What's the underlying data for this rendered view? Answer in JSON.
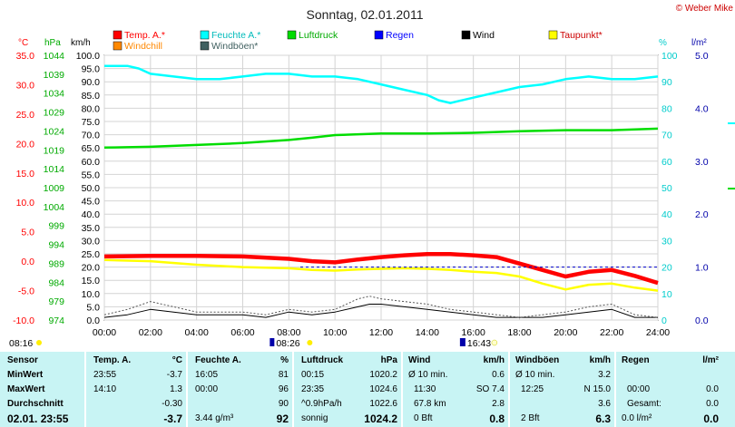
{
  "chart_data": {
    "type": "line",
    "title": "Sonntag, 02.01.2011",
    "credit": "© Weber Mike",
    "legend": [
      {
        "name": "Temp. A.*",
        "color": "#ff0000"
      },
      {
        "name": "Feuchte A.*",
        "color": "#00ffff"
      },
      {
        "name": "Luftdruck",
        "color": "#00dd00"
      },
      {
        "name": "Regen",
        "color": "#0000ff"
      },
      {
        "name": "Wind",
        "color": "#000000"
      },
      {
        "name": "Taupunkt*",
        "color": "#ffff00"
      },
      {
        "name": "Windchill",
        "color": "#ff8800"
      },
      {
        "name": "Windböen*",
        "color": "#406060"
      }
    ],
    "axes": {
      "temp": {
        "unit": "°C",
        "color": "#ff0000",
        "ticks": [
          "35.0",
          "30.0",
          "25.0",
          "20.0",
          "15.0",
          "10.0",
          "5.0",
          "0.0",
          "-5.0",
          "-10.0"
        ]
      },
      "pressure": {
        "unit": "hPa",
        "color": "#00aa00",
        "ticks": [
          "1044",
          "1039",
          "1034",
          "1029",
          "1024",
          "1019",
          "1014",
          "1009",
          "1004",
          "999",
          "994",
          "989",
          "984",
          "979",
          "974"
        ]
      },
      "wind": {
        "unit": "km/h",
        "color": "#000000",
        "ticks": [
          "100.0",
          "95.0",
          "90.0",
          "85.0",
          "80.0",
          "75.0",
          "70.0",
          "65.0",
          "60.0",
          "55.0",
          "50.0",
          "45.0",
          "40.0",
          "35.0",
          "30.0",
          "25.0",
          "20.0",
          "15.0",
          "10.0",
          "5.0",
          "0.0"
        ]
      },
      "humidity": {
        "unit": "%",
        "color": "#00cccc",
        "ticks": [
          "100",
          "90",
          "80",
          "70",
          "60",
          "50",
          "40",
          "30",
          "20",
          "10",
          "0"
        ]
      },
      "rain": {
        "unit": "l/m²",
        "color": "#0000aa",
        "ticks": [
          "5.0",
          "4.0",
          "3.0",
          "2.0",
          "1.0",
          "0.0"
        ]
      },
      "x": {
        "ticks": [
          "00:00",
          "02:00",
          "04:00",
          "06:00",
          "08:00",
          "10:00",
          "12:00",
          "14:00",
          "16:00",
          "18:00",
          "20:00",
          "22:00",
          "24:00"
        ],
        "xlim": [
          0,
          24
        ]
      },
      "ylim_left": [
        0,
        100
      ]
    },
    "series": [
      {
        "name": "Feuchte A.*",
        "axis": "humidity",
        "x": [
          0,
          1,
          1.5,
          2,
          3,
          4,
          5,
          6,
          7,
          8,
          9,
          10,
          11,
          12,
          13,
          14,
          14.5,
          15,
          16,
          17,
          18,
          19,
          20,
          21,
          22,
          23,
          24
        ],
        "values": [
          96,
          96,
          95,
          93,
          92,
          91,
          91,
          92,
          93,
          93,
          92,
          92,
          91,
          89,
          87,
          85,
          83,
          82,
          84,
          86,
          88,
          89,
          91,
          92,
          91,
          91,
          92
        ]
      },
      {
        "name": "Luftdruck",
        "axis": "pressure",
        "x": [
          0,
          2,
          4,
          6,
          8,
          9,
          10,
          12,
          14,
          16,
          18,
          20,
          22,
          24
        ],
        "values": [
          1019.6,
          1019.8,
          1020.3,
          1020.8,
          1021.6,
          1022.2,
          1022.9,
          1023.3,
          1023.3,
          1023.5,
          1023.9,
          1024.2,
          1024.2,
          1024.6
        ]
      },
      {
        "name": "Temp. A.*",
        "axis": "temp",
        "x": [
          0,
          2,
          4,
          6,
          8,
          9,
          10,
          11,
          12,
          13,
          14,
          15,
          16,
          17,
          18,
          19,
          20,
          21,
          22,
          23,
          24
        ],
        "values": [
          0.8,
          0.9,
          0.9,
          0.8,
          0.4,
          0.0,
          -0.2,
          0.3,
          0.7,
          1.0,
          1.2,
          1.2,
          1.0,
          0.7,
          -0.4,
          -1.5,
          -2.6,
          -1.8,
          -1.5,
          -2.5,
          -3.7
        ]
      },
      {
        "name": "Taupunkt*",
        "axis": "temp",
        "x": [
          0,
          2,
          4,
          6,
          8,
          9,
          10,
          11,
          12,
          13,
          14,
          15,
          16,
          17,
          18,
          19,
          20,
          21,
          22,
          23,
          24
        ],
        "values": [
          0.2,
          0.0,
          -0.6,
          -1.0,
          -1.2,
          -1.5,
          -1.6,
          -1.4,
          -1.3,
          -1.2,
          -1.3,
          -1.5,
          -1.8,
          -2.0,
          -2.6,
          -3.8,
          -4.8,
          -4.0,
          -3.8,
          -4.5,
          -5.0
        ]
      },
      {
        "name": "Wind",
        "axis": "wind",
        "x": [
          0,
          1,
          2,
          3,
          4,
          5,
          6,
          7,
          8,
          9,
          10,
          11,
          11.5,
          12,
          13,
          14,
          15,
          16,
          17,
          18,
          19,
          20,
          21,
          22,
          23,
          24
        ],
        "values": [
          1,
          2,
          4,
          3,
          2,
          2,
          2,
          1,
          3,
          2,
          3,
          5,
          6,
          6,
          5,
          4,
          3,
          2,
          1,
          1,
          1,
          2,
          3,
          4,
          1,
          1
        ]
      },
      {
        "name": "Windböen*",
        "axis": "wind",
        "x": [
          0,
          1,
          2,
          3,
          4,
          5,
          6,
          7,
          8,
          9,
          10,
          11,
          11.5,
          12,
          13,
          14,
          15,
          16,
          17,
          18,
          19,
          20,
          21,
          22,
          23,
          24
        ],
        "values": [
          2,
          4,
          7,
          5,
          3,
          3,
          3,
          2,
          4,
          3,
          4,
          8,
          9,
          8,
          7,
          6,
          4,
          3,
          2,
          1,
          2,
          3,
          5,
          6,
          2,
          1
        ]
      },
      {
        "name": "Regen",
        "axis": "rain",
        "x": [
          8.5,
          24
        ],
        "values": [
          1.0,
          1.0
        ]
      }
    ],
    "sun": {
      "sunrise": "08:16",
      "zenith": "08:26",
      "moon": "16:43"
    }
  },
  "stats": {
    "headers": {
      "sensor": "Sensor",
      "temp": "Temp. A.",
      "temp_unit": "°C",
      "hum": "Feuchte A.",
      "hum_unit": "%",
      "press": "Luftdruck",
      "press_unit": "hPa",
      "wind": "Wind",
      "wind_unit": "km/h",
      "gust": "Windböen",
      "gust_unit": "km/h",
      "rain": "Regen",
      "rain_unit": "l/m²"
    },
    "rows": {
      "min": {
        "label": "MinWert",
        "temp_time": "23:55",
        "temp_val": "-3.7",
        "hum_time": "16:05",
        "hum_val": "81",
        "press_time": "00:15",
        "press_val": "1020.2",
        "wind_time": "Ø 10 min.",
        "wind_val": "0.6",
        "gust_time": "Ø 10 min.",
        "gust_val": "3.2"
      },
      "max": {
        "label": "MaxWert",
        "temp_time": "14:10",
        "temp_val": "1.3",
        "hum_time": "00:00",
        "hum_val": "96",
        "press_time": "23:35",
        "press_val": "1024.6",
        "wind_time": "11:30",
        "wind_val": "SO 7.4",
        "gust_time": "12:25",
        "gust_val": "N 15.0",
        "rain_time": "00:00",
        "rain_val": "0.0"
      },
      "avg": {
        "label": "Durchschnitt",
        "temp_val": "-0.30",
        "hum_val": "90",
        "press_time": "^0.9hPa/h",
        "press_val": "1022.6",
        "wind_time": "67.8 km",
        "wind_val": "2.8",
        "gust_val": "3.6",
        "rain_time": "Gesamt:",
        "rain_val": "0.0"
      },
      "cur": {
        "label": "02.01. 23:55",
        "temp_val": "-3.7",
        "hum_time": "3.44 g/m³",
        "hum_val": "92",
        "press_time": "sonnig",
        "press_val": "1024.2",
        "wind_time": "0 Bft",
        "wind_val": "0.8",
        "gust_time": "2 Bft",
        "gust_val": "6.3",
        "rain_time": "0.0 l/m²",
        "rain_val": "0.0"
      }
    }
  }
}
